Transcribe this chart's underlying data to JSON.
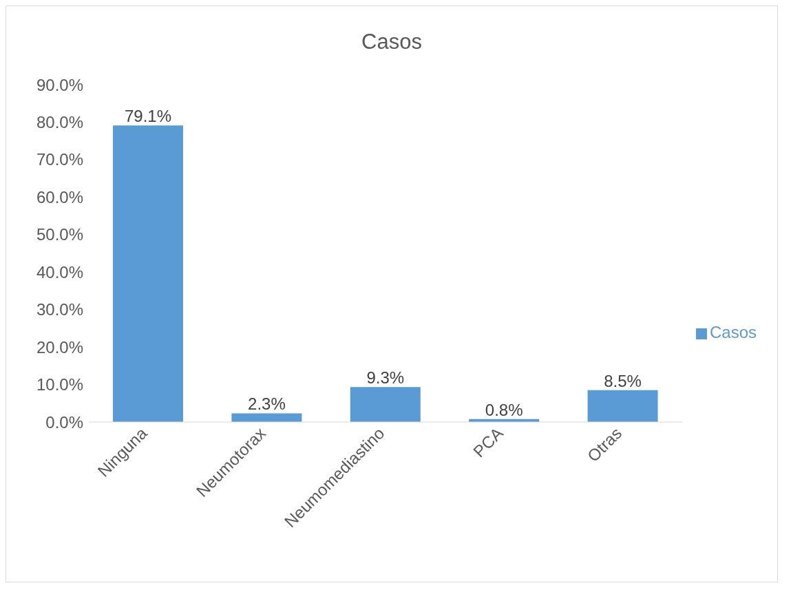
{
  "chart_data": {
    "type": "bar",
    "title": "Casos",
    "categories": [
      "Ninguna",
      "Neumotorax",
      "Neumomediastino",
      "PCA",
      "Otras"
    ],
    "series": [
      {
        "name": "Casos",
        "color": "#5b9bd5",
        "values": [
          79.1,
          2.3,
          9.3,
          0.8,
          8.5
        ],
        "value_labels": [
          "79.1%",
          "2.3%",
          "9.3%",
          "0.8%",
          "8.5%"
        ]
      }
    ],
    "ylim": [
      0,
      90
    ],
    "yticks": [
      {
        "value": 0,
        "label": "0.0%"
      },
      {
        "value": 10,
        "label": "10.0%"
      },
      {
        "value": 20,
        "label": "20.0%"
      },
      {
        "value": 30,
        "label": "30.0%"
      },
      {
        "value": 40,
        "label": "40.0%"
      },
      {
        "value": 50,
        "label": "50.0%"
      },
      {
        "value": 60,
        "label": "60.0%"
      },
      {
        "value": 70,
        "label": "70.0%"
      },
      {
        "value": 80,
        "label": "80.0%"
      },
      {
        "value": 90,
        "label": "90.0%"
      }
    ],
    "grid": false,
    "legend": "right"
  }
}
